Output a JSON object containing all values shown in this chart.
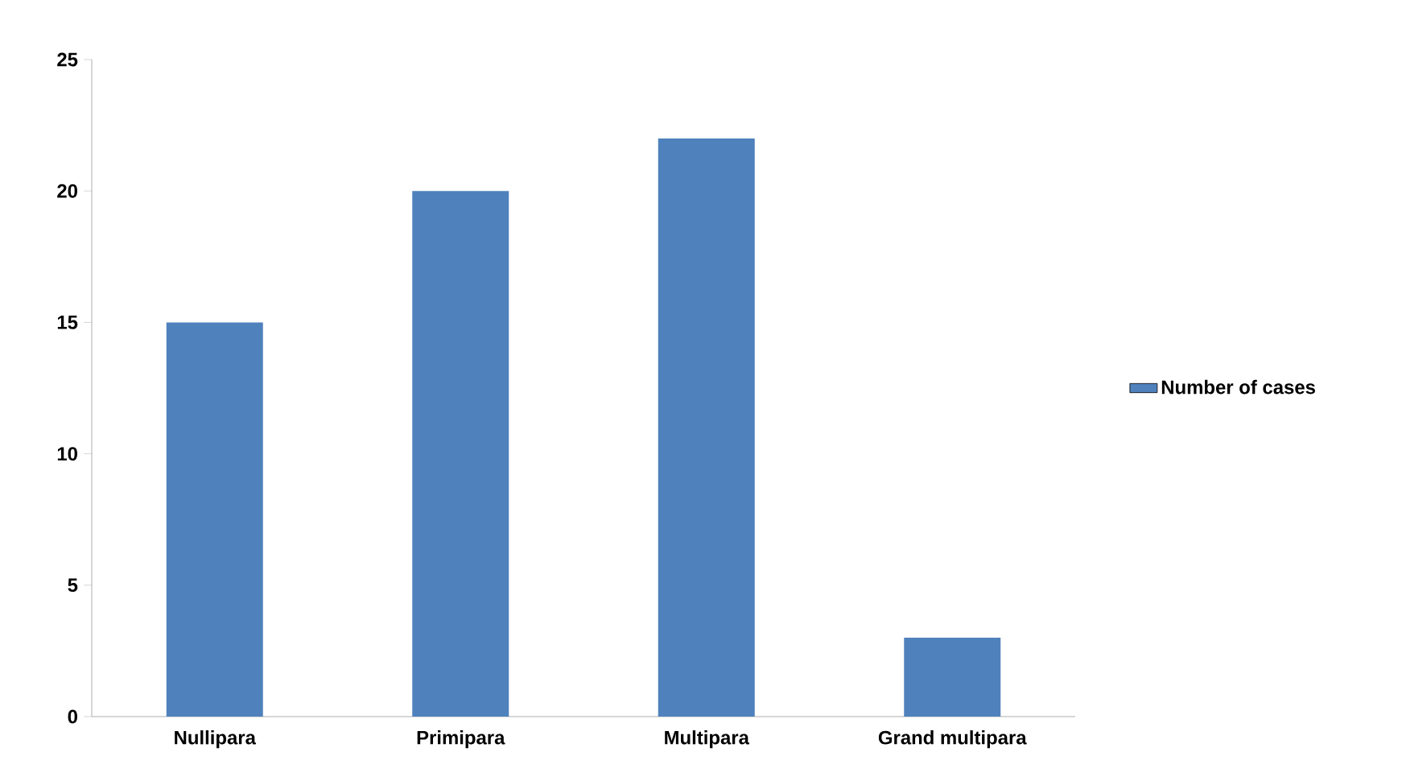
{
  "chart_data": {
    "type": "bar",
    "categories": [
      "Nullipara",
      "Primipara",
      "Multipara",
      "Grand multipara"
    ],
    "series": [
      {
        "name": "Number of cases",
        "color": "#4f81bd",
        "values": [
          15,
          20,
          22,
          3
        ]
      }
    ],
    "ylim": [
      0,
      25
    ],
    "yticks": [
      0,
      5,
      10,
      15,
      20,
      25
    ],
    "grid": false,
    "legend": "right"
  }
}
